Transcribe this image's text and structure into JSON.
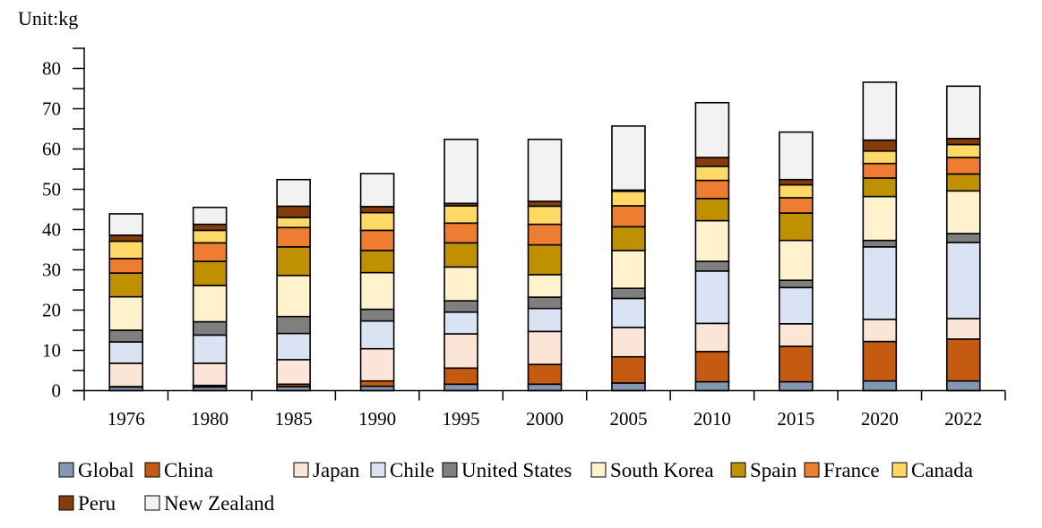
{
  "chart_data": {
    "type": "bar",
    "stacked": true,
    "title": "",
    "unit_label": "Unit:kg",
    "xlabel": "",
    "ylabel": "",
    "ylim": [
      0,
      85
    ],
    "yticks": [
      0,
      10,
      20,
      30,
      40,
      50,
      60,
      70,
      80
    ],
    "ytick_labels": [
      "0",
      "10",
      "20",
      "30",
      "40",
      "50",
      "60",
      "70",
      "80"
    ],
    "minor_ytick_step": 5,
    "grid": false,
    "legend_position": "bottom",
    "categories": [
      "1976",
      "1980",
      "1985",
      "1990",
      "1995",
      "2000",
      "2005",
      "2010",
      "2015",
      "2020",
      "2022"
    ],
    "series": [
      {
        "name": "Global",
        "color": "#8497B0",
        "values": [
          0.9,
          0.9,
          1.0,
          1.1,
          1.6,
          1.6,
          1.9,
          2.2,
          2.2,
          2.4,
          2.4
        ]
      },
      {
        "name": "China",
        "color": "#C55A11",
        "values": [
          0.1,
          0.4,
          0.6,
          1.3,
          4.0,
          4.9,
          6.5,
          7.5,
          8.8,
          9.8,
          10.4
        ]
      },
      {
        "name": "Japan",
        "color": "#FBE5D6",
        "values": [
          5.8,
          5.5,
          6.1,
          8.0,
          8.5,
          8.2,
          7.3,
          7.0,
          5.6,
          5.5,
          5.1
        ]
      },
      {
        "name": "Chile",
        "color": "#DAE3F3",
        "values": [
          5.3,
          7.0,
          6.5,
          6.9,
          5.4,
          5.7,
          7.2,
          13.0,
          9.0,
          18.0,
          18.9
        ]
      },
      {
        "name": "United States",
        "color": "#7F7F7F",
        "values": [
          2.9,
          3.3,
          4.2,
          2.9,
          2.8,
          2.8,
          2.5,
          2.4,
          1.8,
          1.6,
          2.2
        ]
      },
      {
        "name": "South Korea",
        "color": "#FFF2CC",
        "values": [
          8.3,
          9.0,
          10.2,
          9.1,
          8.4,
          5.6,
          9.4,
          10.1,
          9.9,
          10.9,
          10.6
        ]
      },
      {
        "name": "Spain",
        "color": "#BF9000",
        "values": [
          5.9,
          6.0,
          7.1,
          5.5,
          6.0,
          7.4,
          5.9,
          5.5,
          6.8,
          4.6,
          4.2
        ]
      },
      {
        "name": "France",
        "color": "#ED7D31",
        "values": [
          3.6,
          4.6,
          4.8,
          5.0,
          4.9,
          5.1,
          5.2,
          4.5,
          3.8,
          3.6,
          4.1
        ]
      },
      {
        "name": "Canada",
        "color": "#FFD966",
        "values": [
          4.3,
          3.1,
          2.5,
          4.4,
          4.3,
          4.5,
          3.6,
          3.5,
          3.2,
          3.1,
          3.2
        ]
      },
      {
        "name": "Peru",
        "color": "#843C0C",
        "values": [
          1.5,
          1.5,
          2.8,
          1.5,
          0.6,
          1.2,
          0.3,
          2.2,
          1.3,
          2.7,
          1.5
        ]
      },
      {
        "name": "New Zealand",
        "color": "#F2F2F2",
        "values": [
          5.3,
          4.2,
          6.6,
          8.2,
          15.9,
          15.4,
          15.9,
          13.6,
          11.8,
          14.4,
          13.0
        ]
      }
    ]
  }
}
